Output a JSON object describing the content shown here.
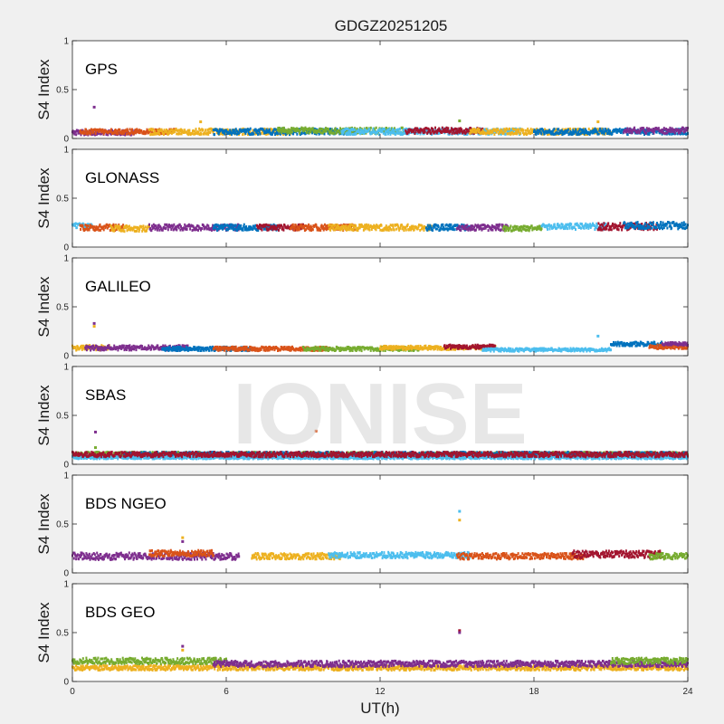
{
  "chart_data": {
    "type": "scatter",
    "title": "GDGZ20251205",
    "xlabel": "UT(h)",
    "ylabel": "S4 Index",
    "xlim": [
      0,
      24
    ],
    "ylim": [
      0,
      1
    ],
    "xticks": [
      "0",
      "6",
      "12",
      "18",
      "24"
    ],
    "yticks": [
      "0",
      "0.5",
      "1"
    ],
    "watermark": "IONISE",
    "grid": false,
    "colors": [
      "#0072bd",
      "#d95319",
      "#edb120",
      "#7e2f8e",
      "#77ac30",
      "#4dbeee",
      "#a2142f"
    ],
    "panels": [
      {
        "label": "GPS",
        "segments": [
          {
            "c": 3,
            "x0": 0.0,
            "x1": 2.5,
            "base": 0.06,
            "amp": 0.05
          },
          {
            "c": 1,
            "x0": 0.3,
            "x1": 4.0,
            "base": 0.07,
            "amp": 0.05
          },
          {
            "c": 2,
            "x0": 3.0,
            "x1": 8.5,
            "base": 0.07,
            "amp": 0.06
          },
          {
            "c": 0,
            "x0": 5.5,
            "x1": 11.0,
            "base": 0.07,
            "amp": 0.06
          },
          {
            "c": 4,
            "x0": 8.0,
            "x1": 13.0,
            "base": 0.08,
            "amp": 0.06
          },
          {
            "c": 5,
            "x0": 10.5,
            "x1": 17.5,
            "base": 0.07,
            "amp": 0.06
          },
          {
            "c": 6,
            "x0": 13.0,
            "x1": 16.0,
            "base": 0.08,
            "amp": 0.06
          },
          {
            "c": 2,
            "x0": 15.5,
            "x1": 21.0,
            "base": 0.07,
            "amp": 0.06
          },
          {
            "c": 0,
            "x0": 18.0,
            "x1": 24.0,
            "base": 0.07,
            "amp": 0.06
          },
          {
            "c": 3,
            "x0": 21.5,
            "x1": 24.0,
            "base": 0.08,
            "amp": 0.06
          }
        ],
        "outliers": [
          {
            "x": 0.85,
            "y": 0.32,
            "c": 3
          },
          {
            "x": 5.0,
            "y": 0.17,
            "c": 2
          },
          {
            "x": 15.1,
            "y": 0.18,
            "c": 4
          },
          {
            "x": 20.5,
            "y": 0.17,
            "c": 2
          }
        ]
      },
      {
        "label": "GLONASS",
        "segments": [
          {
            "c": 5,
            "x0": 0.0,
            "x1": 0.8,
            "base": 0.22,
            "amp": 0.05
          },
          {
            "c": 1,
            "x0": 0.3,
            "x1": 2.0,
            "base": 0.2,
            "amp": 0.06
          },
          {
            "c": 2,
            "x0": 1.5,
            "x1": 3.0,
            "base": 0.19,
            "amp": 0.06
          },
          {
            "c": 3,
            "x0": 3.0,
            "x1": 6.5,
            "base": 0.2,
            "amp": 0.06
          },
          {
            "c": 0,
            "x0": 5.5,
            "x1": 8.0,
            "base": 0.2,
            "amp": 0.06
          },
          {
            "c": 6,
            "x0": 7.2,
            "x1": 9.0,
            "base": 0.2,
            "amp": 0.06
          },
          {
            "c": 1,
            "x0": 8.5,
            "x1": 11.0,
            "base": 0.2,
            "amp": 0.06
          },
          {
            "c": 2,
            "x0": 10.0,
            "x1": 14.0,
            "base": 0.2,
            "amp": 0.06
          },
          {
            "c": 0,
            "x0": 13.8,
            "x1": 15.5,
            "base": 0.2,
            "amp": 0.06
          },
          {
            "c": 3,
            "x0": 15.0,
            "x1": 17.0,
            "base": 0.2,
            "amp": 0.06
          },
          {
            "c": 4,
            "x0": 16.8,
            "x1": 18.3,
            "base": 0.19,
            "amp": 0.05
          },
          {
            "c": 5,
            "x0": 18.3,
            "x1": 20.8,
            "base": 0.21,
            "amp": 0.06
          },
          {
            "c": 6,
            "x0": 20.5,
            "x1": 22.8,
            "base": 0.21,
            "amp": 0.07
          },
          {
            "c": 0,
            "x0": 21.5,
            "x1": 24.0,
            "base": 0.22,
            "amp": 0.07
          }
        ],
        "outliers": []
      },
      {
        "label": "GALILEO",
        "segments": [
          {
            "c": 2,
            "x0": 0.0,
            "x1": 1.5,
            "base": 0.08,
            "amp": 0.05
          },
          {
            "c": 3,
            "x0": 0.5,
            "x1": 4.5,
            "base": 0.08,
            "amp": 0.05
          },
          {
            "c": 0,
            "x0": 3.5,
            "x1": 7.0,
            "base": 0.07,
            "amp": 0.04
          },
          {
            "c": 1,
            "x0": 5.5,
            "x1": 10.0,
            "base": 0.07,
            "amp": 0.04
          },
          {
            "c": 4,
            "x0": 9.0,
            "x1": 13.5,
            "base": 0.07,
            "amp": 0.04
          },
          {
            "c": 2,
            "x0": 12.0,
            "x1": 16.5,
            "base": 0.08,
            "amp": 0.04
          },
          {
            "c": 6,
            "x0": 14.5,
            "x1": 16.5,
            "base": 0.09,
            "amp": 0.04
          },
          {
            "c": 5,
            "x0": 16.0,
            "x1": 21.0,
            "base": 0.06,
            "amp": 0.03
          },
          {
            "c": 0,
            "x0": 21.0,
            "x1": 23.0,
            "base": 0.12,
            "amp": 0.04
          },
          {
            "c": 1,
            "x0": 22.5,
            "x1": 24.0,
            "base": 0.09,
            "amp": 0.04
          },
          {
            "c": 3,
            "x0": 23.0,
            "x1": 24.0,
            "base": 0.12,
            "amp": 0.03
          }
        ],
        "outliers": [
          {
            "x": 0.85,
            "y": 0.3,
            "c": 2
          },
          {
            "x": 0.85,
            "y": 0.33,
            "c": 3
          },
          {
            "x": 20.5,
            "y": 0.2,
            "c": 5
          }
        ]
      },
      {
        "label": "SBAS",
        "segments": [
          {
            "c": 4,
            "x0": 0.0,
            "x1": 24.0,
            "base": 0.1,
            "amp": 0.05
          },
          {
            "c": 0,
            "x0": 2.0,
            "x1": 24.0,
            "base": 0.1,
            "amp": 0.05
          },
          {
            "c": 5,
            "x0": 0.0,
            "x1": 24.0,
            "base": 0.07,
            "amp": 0.03
          },
          {
            "c": 6,
            "x0": 0.0,
            "x1": 24.0,
            "base": 0.1,
            "amp": 0.05
          }
        ],
        "outliers": [
          {
            "x": 0.9,
            "y": 0.33,
            "c": 3
          },
          {
            "x": 0.9,
            "y": 0.17,
            "c": 4
          },
          {
            "x": 9.5,
            "y": 0.34,
            "c": 1
          }
        ]
      },
      {
        "label": "BDS NGEO",
        "segments": [
          {
            "c": 3,
            "x0": 0.0,
            "x1": 6.5,
            "base": 0.17,
            "amp": 0.07
          },
          {
            "c": 1,
            "x0": 3.0,
            "x1": 5.5,
            "base": 0.2,
            "amp": 0.06
          },
          {
            "c": 2,
            "x0": 7.0,
            "x1": 10.5,
            "base": 0.17,
            "amp": 0.06
          },
          {
            "c": 5,
            "x0": 10.0,
            "x1": 15.5,
            "base": 0.18,
            "amp": 0.06
          },
          {
            "c": 1,
            "x0": 15.0,
            "x1": 20.0,
            "base": 0.17,
            "amp": 0.06
          },
          {
            "c": 6,
            "x0": 19.5,
            "x1": 23.0,
            "base": 0.19,
            "amp": 0.07
          },
          {
            "c": 4,
            "x0": 22.5,
            "x1": 24.0,
            "base": 0.17,
            "amp": 0.06
          }
        ],
        "outliers": [
          {
            "x": 4.3,
            "y": 0.36,
            "c": 2
          },
          {
            "x": 4.3,
            "y": 0.32,
            "c": 3
          },
          {
            "x": 15.1,
            "y": 0.63,
            "c": 5
          },
          {
            "x": 15.1,
            "y": 0.54,
            "c": 2
          }
        ]
      },
      {
        "label": "BDS GEO",
        "segments": [
          {
            "c": 2,
            "x0": 0.0,
            "x1": 24.0,
            "base": 0.14,
            "amp": 0.05
          },
          {
            "c": 4,
            "x0": 0.0,
            "x1": 6.0,
            "base": 0.21,
            "amp": 0.06
          },
          {
            "c": 3,
            "x0": 5.5,
            "x1": 24.0,
            "base": 0.18,
            "amp": 0.06
          },
          {
            "c": 4,
            "x0": 21.0,
            "x1": 24.0,
            "base": 0.21,
            "amp": 0.06
          }
        ],
        "outliers": [
          {
            "x": 4.3,
            "y": 0.36,
            "c": 3
          },
          {
            "x": 4.3,
            "y": 0.32,
            "c": 2
          },
          {
            "x": 15.1,
            "y": 0.52,
            "c": 6
          },
          {
            "x": 15.1,
            "y": 0.5,
            "c": 3
          }
        ]
      }
    ]
  }
}
